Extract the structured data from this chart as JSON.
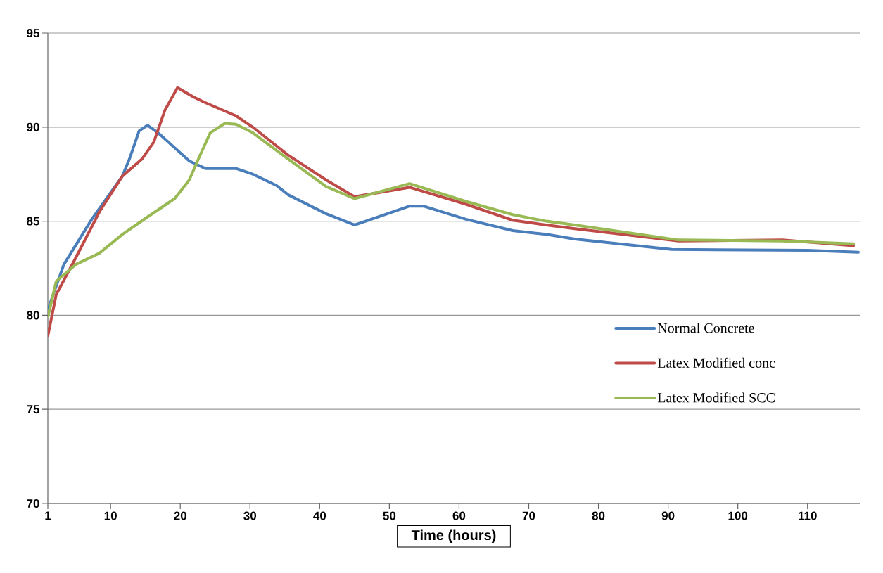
{
  "chart_data": {
    "type": "line",
    "xlabel": "Time (hours)",
    "xlim": [
      1,
      117.5
    ],
    "ylim": [
      70,
      95
    ],
    "xticks": [
      1,
      10,
      20,
      30,
      40,
      50,
      60,
      70,
      80,
      90,
      100,
      110
    ],
    "yticks": [
      70,
      75,
      80,
      85,
      90,
      95
    ],
    "grid": "y",
    "legend": "right",
    "marker": "none",
    "line_style": "solid",
    "series": [
      {
        "name": "Normal Concrete",
        "color": "#4a7ebb",
        "x": [
          1,
          3.3,
          7.3,
          11.7,
          12.7,
          14.1,
          15.3,
          16.8,
          21.3,
          23.6,
          28.0,
          30.4,
          33.8,
          35.5,
          40.9,
          45.0,
          52.9,
          54.9,
          61.0,
          67.7,
          72.5,
          76.6,
          90.5,
          109.9,
          117.3
        ],
        "values": [
          80.3,
          82.7,
          85.1,
          87.4,
          88.3,
          89.8,
          90.1,
          89.7,
          88.2,
          87.8,
          87.8,
          87.5,
          86.9,
          86.4,
          85.4,
          84.8,
          85.8,
          85.8,
          85.1,
          84.5,
          84.3,
          84.05,
          83.5,
          83.45,
          83.35
        ]
      },
      {
        "name": "Latex Modified conc",
        "color": "#be4b48",
        "x": [
          1,
          2.2,
          5.0,
          8.4,
          11.7,
          14.5,
          16.2,
          17.8,
          19.6,
          21.9,
          23.6,
          28.0,
          30.4,
          33.8,
          35.5,
          40.9,
          45.0,
          52.9,
          61.0,
          67.7,
          72.5,
          76.6,
          91.5,
          106.4,
          116.6
        ],
        "values": [
          78.9,
          81.1,
          83.05,
          85.5,
          87.4,
          88.3,
          89.2,
          90.9,
          92.1,
          91.6,
          91.3,
          90.6,
          90.0,
          89.0,
          88.5,
          87.2,
          86.3,
          86.8,
          85.9,
          85.05,
          84.8,
          84.6,
          83.95,
          84.0,
          83.7
        ]
      },
      {
        "name": "Latex Modified SCC",
        "color": "#98b954",
        "x": [
          1,
          2.2,
          5.0,
          8.4,
          11.7,
          15.2,
          19.2,
          21.3,
          22.6,
          24.3,
          26.4,
          28.0,
          30.4,
          35.5,
          40.9,
          45.0,
          52.9,
          61.0,
          67.7,
          72.5,
          76.6,
          91.5,
          106.4,
          116.6
        ],
        "values": [
          79.9,
          81.8,
          82.7,
          83.3,
          84.3,
          85.2,
          86.2,
          87.2,
          88.3,
          89.7,
          90.2,
          90.15,
          89.7,
          88.3,
          86.85,
          86.2,
          87.0,
          86.05,
          85.35,
          85.0,
          84.8,
          84.0,
          83.95,
          83.8
        ]
      }
    ]
  }
}
